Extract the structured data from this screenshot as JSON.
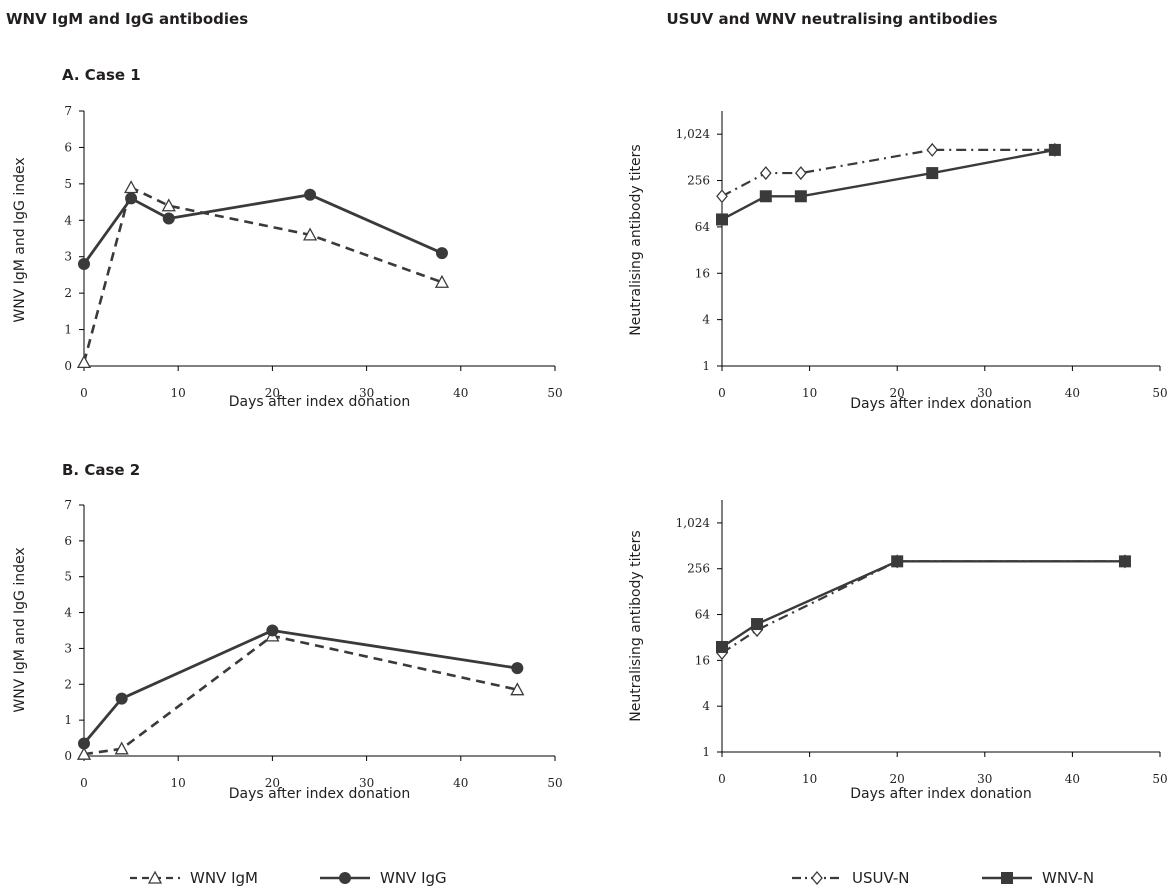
{
  "headings": {
    "left": "WNV IgM and IgG antibodies",
    "right": "USUV and WNV neutralising antibodies"
  },
  "panels": {
    "case1": "A. Case 1",
    "case2": "B. Case 2"
  },
  "legends": {
    "left": [
      {
        "label": "WNV IgM",
        "style": "dashed",
        "marker": "triangle-open"
      },
      {
        "label": "WNV IgG",
        "style": "solid",
        "marker": "circle-filled"
      }
    ],
    "right": [
      {
        "label": "USUV-N",
        "style": "dashdot",
        "marker": "diamond-open"
      },
      {
        "label": "WNV-N",
        "style": "solid",
        "marker": "square-filled"
      }
    ]
  },
  "colors": {
    "line": "#3a3a3a",
    "text": "#231f20"
  },
  "chart_data": [
    {
      "type": "line",
      "panel": "A. Case 1 — WNV IgM and IgG antibodies",
      "xlabel": "Days after index donation",
      "ylabel": "WNV IgM and IgG index",
      "xlim": [
        0,
        50
      ],
      "ylim": [
        0,
        7
      ],
      "xticks": [
        "0",
        "10",
        "20",
        "30",
        "40",
        "50"
      ],
      "yticks": [
        "0",
        "1",
        "2",
        "3",
        "4",
        "5",
        "6",
        "7"
      ],
      "series": [
        {
          "name": "WNV IgM",
          "x": [
            0,
            5,
            9,
            24,
            38
          ],
          "y": [
            0.1,
            4.9,
            4.4,
            3.6,
            2.3
          ]
        },
        {
          "name": "WNV IgG",
          "x": [
            0,
            5,
            9,
            24,
            38
          ],
          "y": [
            2.8,
            4.6,
            4.05,
            4.7,
            3.1
          ]
        }
      ]
    },
    {
      "type": "line",
      "panel": "A. Case 1 — neutralising antibodies",
      "xlabel": "Days after index donation",
      "ylabel": "Neutralising antibody titers",
      "scale": "log2",
      "xlim": [
        0,
        50
      ],
      "ylim": [
        1,
        2048
      ],
      "xticks": [
        "0",
        "10",
        "20",
        "30",
        "40",
        "50"
      ],
      "yticks": [
        "1",
        "4",
        "16",
        "64",
        "256",
        "1,024"
      ],
      "series": [
        {
          "name": "USUV-N",
          "x": [
            0,
            5,
            9,
            24,
            38
          ],
          "y": [
            160,
            320,
            320,
            640,
            640
          ]
        },
        {
          "name": "WNV-N",
          "x": [
            0,
            5,
            9,
            24,
            38
          ],
          "y": [
            80,
            160,
            160,
            320,
            640
          ]
        }
      ]
    },
    {
      "type": "line",
      "panel": "B. Case 2 — WNV IgM and IgG antibodies",
      "xlabel": "Days after index donation",
      "ylabel": "WNV IgM and IgG index",
      "xlim": [
        0,
        50
      ],
      "ylim": [
        0,
        7
      ],
      "xticks": [
        "0",
        "10",
        "20",
        "30",
        "40",
        "50"
      ],
      "yticks": [
        "0",
        "1",
        "2",
        "3",
        "4",
        "5",
        "6",
        "7"
      ],
      "series": [
        {
          "name": "WNV IgM",
          "x": [
            0,
            4,
            20,
            46
          ],
          "y": [
            0.05,
            0.2,
            3.35,
            1.85
          ]
        },
        {
          "name": "WNV IgG",
          "x": [
            0,
            4,
            20,
            46
          ],
          "y": [
            0.35,
            1.6,
            3.5,
            2.45
          ]
        }
      ]
    },
    {
      "type": "line",
      "panel": "B. Case 2 — neutralising antibodies",
      "xlabel": "Days after index donation",
      "ylabel": "Neutralising antibody titers",
      "scale": "log2",
      "xlim": [
        0,
        50
      ],
      "ylim": [
        1,
        2048
      ],
      "xticks": [
        "0",
        "10",
        "20",
        "30",
        "40",
        "50"
      ],
      "yticks": [
        "1",
        "4",
        "16",
        "64",
        "256",
        "1,024"
      ],
      "series": [
        {
          "name": "USUV-N",
          "x": [
            0,
            4,
            20,
            46
          ],
          "y": [
            20,
            40,
            320,
            320
          ]
        },
        {
          "name": "WNV-N",
          "x": [
            0,
            4,
            20,
            46
          ],
          "y": [
            24,
            48,
            320,
            320
          ]
        }
      ]
    }
  ]
}
